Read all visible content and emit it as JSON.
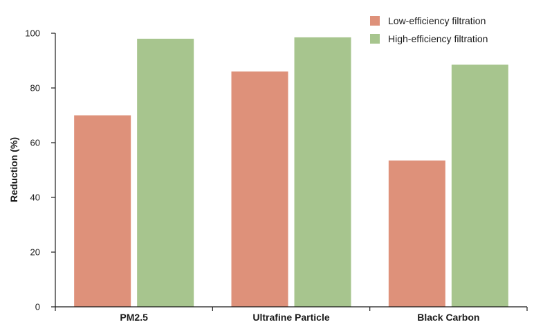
{
  "chart_data": {
    "type": "bar",
    "categories": [
      "PM2.5",
      "Ultrafine Particle",
      "Black Carbon"
    ],
    "series": [
      {
        "name": "Low-efficiency filtration",
        "values": [
          70,
          86,
          53.5
        ],
        "color": "#de917a"
      },
      {
        "name": "High-efficiency filtration",
        "values": [
          98,
          98.5,
          88.5
        ],
        "color": "#a7c58e"
      }
    ],
    "ylabel": "Reduction (%)",
    "xlabel": "",
    "ylim": [
      0,
      100
    ],
    "yticks": [
      0,
      20,
      40,
      60,
      80,
      100
    ],
    "grid": false,
    "legend_position": "top-right"
  }
}
